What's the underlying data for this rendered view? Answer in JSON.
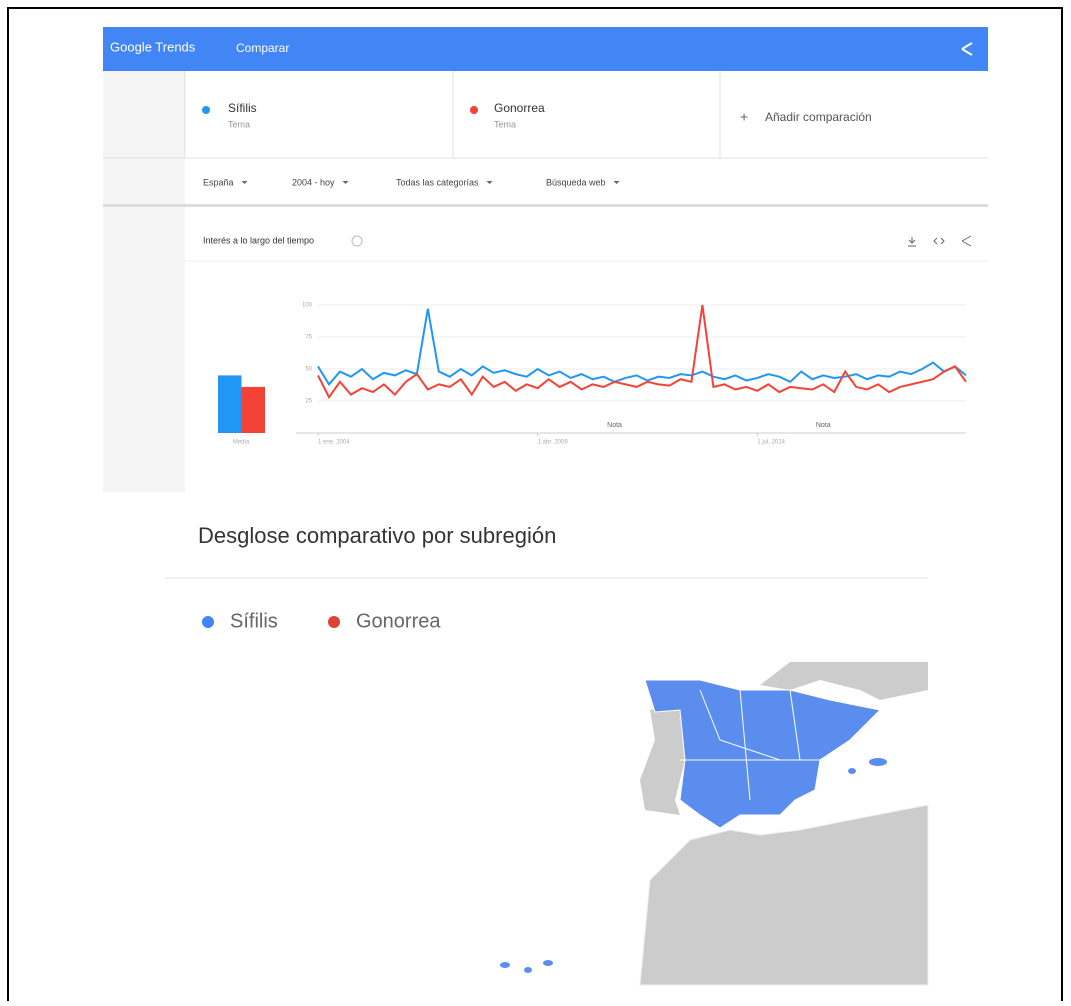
{
  "header": {
    "logo": "Google Trends",
    "title": "Comparar"
  },
  "terms": [
    {
      "name": "Sífilis",
      "type": "Tema"
    },
    {
      "name": "Gonorrea",
      "type": "Tema"
    }
  ],
  "add_comparison": "Añadir comparación",
  "filters": [
    "España",
    "2004 - hoy",
    "Todas las categorías",
    "Búsqueda web"
  ],
  "interest": {
    "title": "Interés a lo largo del tiempo",
    "chart_data": {
      "type": "line",
      "ylim": [
        0,
        100
      ],
      "yticks": [
        25,
        50,
        75,
        100
      ],
      "grid": true,
      "xlim": [
        0,
        59
      ],
      "xticks": [
        {
          "value": 0,
          "label": "1 ene. 2004"
        },
        {
          "value": 20,
          "label": "1 abr. 2009"
        },
        {
          "value": 40,
          "label": "1 jul. 2014"
        }
      ],
      "notes": [
        {
          "x": 27,
          "label": "Nota"
        },
        {
          "x": 46,
          "label": "Nota"
        }
      ],
      "average_label": "Media",
      "series": [
        {
          "name": "Sífilis",
          "color": "#2196f3",
          "average": 45,
          "values": [
            52,
            38,
            48,
            44,
            50,
            42,
            47,
            45,
            49,
            46,
            97,
            48,
            44,
            50,
            45,
            52,
            47,
            49,
            46,
            44,
            50,
            45,
            48,
            43,
            46,
            42,
            44,
            40,
            43,
            45,
            41,
            44,
            43,
            46,
            45,
            48,
            44,
            42,
            45,
            41,
            43,
            46,
            44,
            40,
            48,
            42,
            45,
            43,
            44,
            46,
            42,
            45,
            44,
            48,
            46,
            50,
            55,
            48,
            52,
            45
          ]
        },
        {
          "name": "Gonorrea",
          "color": "#f44336",
          "average": 36,
          "values": [
            45,
            28,
            40,
            30,
            35,
            32,
            38,
            30,
            40,
            46,
            34,
            38,
            36,
            42,
            30,
            44,
            36,
            40,
            33,
            38,
            35,
            42,
            36,
            40,
            34,
            38,
            36,
            40,
            38,
            36,
            40,
            38,
            37,
            42,
            40,
            100,
            36,
            38,
            34,
            36,
            33,
            38,
            32,
            36,
            35,
            34,
            38,
            32,
            48,
            36,
            34,
            38,
            32,
            36,
            38,
            40,
            42,
            48,
            52,
            40
          ]
        }
      ]
    }
  },
  "breakdown": {
    "title": "Desglose comparativo por subregión",
    "legend": [
      "Sífilis",
      "Gonorrea"
    ]
  }
}
